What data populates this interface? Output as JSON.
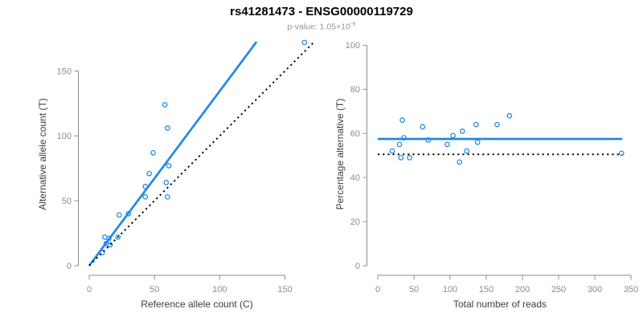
{
  "header": {
    "title": "rs41281473 - ENSG00000119729",
    "subtitle_label": "p-value: ",
    "pvalue_mantissa": "1.05×10",
    "pvalue_exponent": "-9"
  },
  "colors": {
    "accent_blue": "#2287e8",
    "dotted_black": "#000000",
    "axis_gray": "#8c8c8c",
    "tick_label_gray": "#8c8c8c",
    "axis_title_dark": "#3d3d3d",
    "title_black": "#000000",
    "subtitle_gray": "#969696",
    "background": "#ffffff"
  },
  "chart_data": [
    {
      "type": "scatter",
      "panel": "left",
      "title": "",
      "xlabel": "Reference allele count (C)",
      "ylabel": "Alternative allele count (T)",
      "xticks": [
        0,
        50,
        100,
        150
      ],
      "yticks": [
        0,
        50,
        100,
        150
      ],
      "xlim": [
        0,
        174
      ],
      "ylim": [
        0,
        172.5
      ],
      "grid": false,
      "points": [
        [
          10,
          10
        ],
        [
          13,
          17
        ],
        [
          16,
          16
        ],
        [
          12,
          22
        ],
        [
          15,
          21
        ],
        [
          22,
          22
        ],
        [
          23,
          39
        ],
        [
          30,
          40
        ],
        [
          43,
          53
        ],
        [
          43,
          61
        ],
        [
          60,
          53
        ],
        [
          46,
          71
        ],
        [
          59,
          64
        ],
        [
          49,
          87
        ],
        [
          61,
          77
        ],
        [
          60,
          106
        ],
        [
          58,
          124
        ],
        [
          165,
          172
        ]
      ],
      "lines": [
        {
          "name": "fitted-ratio-line",
          "kind": "slope",
          "slope": 1.345,
          "intercept": 0,
          "style": "solid",
          "color": "#2287e8"
        },
        {
          "name": "identity-line",
          "kind": "slope",
          "slope": 1,
          "intercept": 0,
          "style": "dotted",
          "color": "#000000"
        }
      ]
    },
    {
      "type": "scatter",
      "panel": "right",
      "title": "",
      "xlabel": "Total number of reads",
      "ylabel": "Percentage alternative (T)",
      "xticks": [
        0,
        50,
        100,
        150,
        200,
        250,
        300,
        350
      ],
      "yticks": [
        0,
        20,
        40,
        60,
        80,
        100
      ],
      "xlim": [
        0,
        360
      ],
      "ylim": [
        0,
        100
      ],
      "xspan": [
        0,
        338
      ],
      "grid": false,
      "points": [
        [
          20,
          52
        ],
        [
          30,
          55
        ],
        [
          32,
          49
        ],
        [
          34,
          66
        ],
        [
          36,
          58
        ],
        [
          44,
          49
        ],
        [
          62,
          63
        ],
        [
          70,
          57
        ],
        [
          96,
          55
        ],
        [
          104,
          59
        ],
        [
          113,
          47
        ],
        [
          117,
          61
        ],
        [
          123,
          52
        ],
        [
          136,
          64
        ],
        [
          138,
          56
        ],
        [
          165,
          64
        ],
        [
          182,
          68
        ],
        [
          337,
          51
        ]
      ],
      "lines": [
        {
          "name": "fitted-percentage-line",
          "kind": "horizontal",
          "value": 57.5,
          "style": "solid",
          "color": "#2287e8"
        },
        {
          "name": "expected-percentage-line",
          "kind": "horizontal",
          "value": 50.5,
          "style": "dotted",
          "color": "#000000"
        }
      ]
    }
  ]
}
